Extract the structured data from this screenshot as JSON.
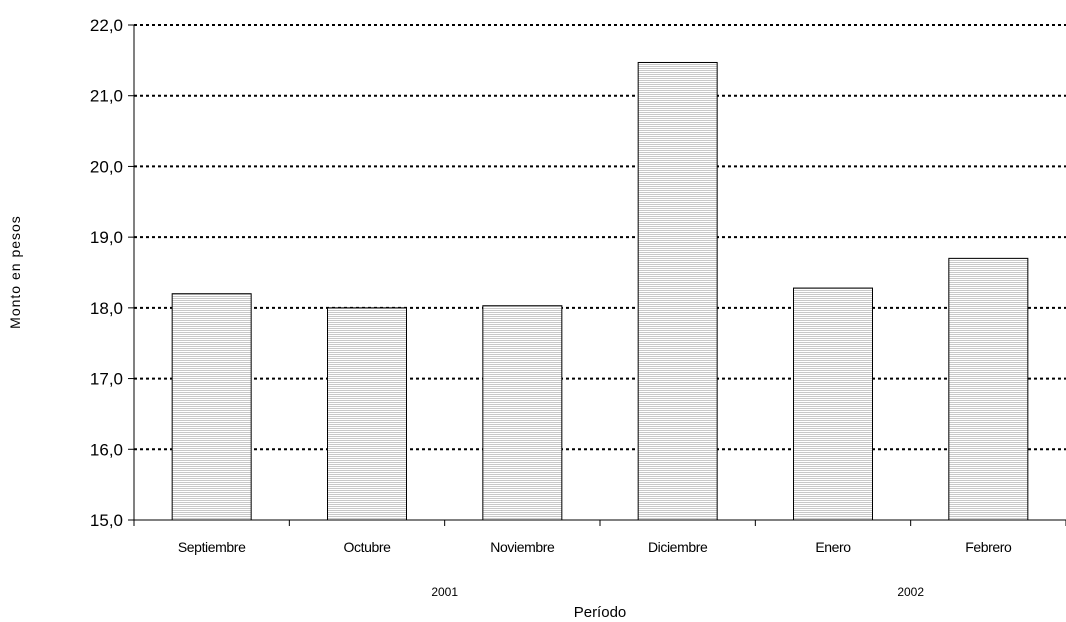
{
  "chart_data": {
    "type": "bar",
    "categories": [
      "Septiembre",
      "Octubre",
      "Noviembre",
      "Diciembre",
      "Enero",
      "Febrero"
    ],
    "values": [
      18.2,
      18.0,
      18.03,
      21.47,
      18.28,
      18.7
    ],
    "years": [
      {
        "label": "2001",
        "categories": [
          "Septiembre",
          "Octubre",
          "Noviembre",
          "Diciembre"
        ]
      },
      {
        "label": "2002",
        "categories": [
          "Enero",
          "Febrero"
        ]
      }
    ],
    "xlabel": "Período",
    "ylabel": "Monto en pesos",
    "ylim": [
      15.0,
      22.0
    ],
    "yticks": [
      15.0,
      16.0,
      17.0,
      18.0,
      19.0,
      20.0,
      21.0,
      22.0
    ],
    "ytick_labels": [
      "15,0",
      "16,0",
      "17,0",
      "18,0",
      "19,0",
      "20,0",
      "21,0",
      "22,0"
    ],
    "grid": true,
    "grid_style": "dotted",
    "bar_fill": "#d9d9d9",
    "bar_stroke": "#000000"
  }
}
